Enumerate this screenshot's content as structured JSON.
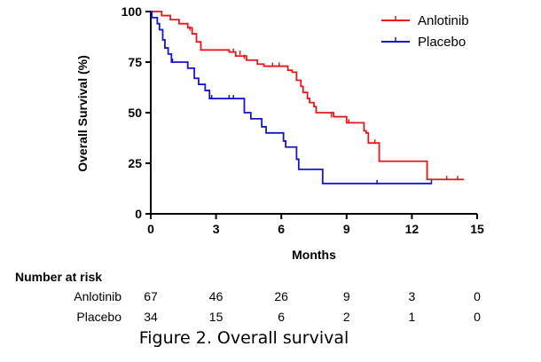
{
  "chart_data": {
    "type": "line",
    "title": "",
    "xlabel": "Months",
    "ylabel": "Overall Survival (%)",
    "xlim": [
      0,
      15
    ],
    "ylim": [
      0,
      100
    ],
    "xticks": [
      0,
      3,
      6,
      9,
      12,
      15
    ],
    "yticks": [
      0,
      25,
      50,
      75,
      100
    ],
    "grid": false,
    "legend_position": "top-right",
    "series": [
      {
        "name": "Anlotinib",
        "color": "#e8161b",
        "step": true,
        "points": [
          [
            0,
            100
          ],
          [
            0.3,
            100
          ],
          [
            0.5,
            98
          ],
          [
            0.9,
            96
          ],
          [
            1.3,
            94
          ],
          [
            1.7,
            92
          ],
          [
            1.9,
            89
          ],
          [
            2.1,
            85
          ],
          [
            2.3,
            81
          ],
          [
            3.1,
            81
          ],
          [
            3.6,
            80
          ],
          [
            3.9,
            78
          ],
          [
            4.4,
            76
          ],
          [
            4.9,
            74
          ],
          [
            5.2,
            73
          ],
          [
            6.1,
            73
          ],
          [
            6.3,
            71
          ],
          [
            6.5,
            70
          ],
          [
            6.7,
            66
          ],
          [
            6.9,
            63
          ],
          [
            7.0,
            60
          ],
          [
            7.2,
            57
          ],
          [
            7.3,
            55
          ],
          [
            7.5,
            53
          ],
          [
            7.6,
            50
          ],
          [
            8.2,
            50
          ],
          [
            8.4,
            48
          ],
          [
            9.0,
            45
          ],
          [
            9.6,
            45
          ],
          [
            9.8,
            41
          ],
          [
            9.9,
            40
          ],
          [
            10.0,
            35
          ],
          [
            10.4,
            35
          ],
          [
            10.5,
            26
          ],
          [
            12.7,
            26
          ],
          [
            12.7,
            17
          ],
          [
            14.4,
            17
          ]
        ],
        "censor": [
          [
            1.8,
            91
          ],
          [
            3.8,
            80
          ],
          [
            4.1,
            79
          ],
          [
            4.3,
            77
          ],
          [
            5.6,
            73
          ],
          [
            5.9,
            73
          ],
          [
            8.3,
            48
          ],
          [
            9.1,
            45
          ],
          [
            10.3,
            35
          ],
          [
            13.6,
            17
          ],
          [
            14.1,
            17
          ]
        ]
      },
      {
        "name": "Placebo",
        "color": "#1515cf",
        "step": true,
        "points": [
          [
            0,
            100
          ],
          [
            0.05,
            97
          ],
          [
            0.3,
            94
          ],
          [
            0.4,
            91
          ],
          [
            0.55,
            86
          ],
          [
            0.65,
            82
          ],
          [
            0.8,
            79
          ],
          [
            0.95,
            75
          ],
          [
            1.5,
            75
          ],
          [
            1.7,
            72
          ],
          [
            2.0,
            67
          ],
          [
            2.2,
            64
          ],
          [
            2.5,
            61
          ],
          [
            2.7,
            57
          ],
          [
            4.1,
            57
          ],
          [
            4.3,
            50
          ],
          [
            4.6,
            47
          ],
          [
            5.1,
            43
          ],
          [
            5.3,
            40
          ],
          [
            6.0,
            40
          ],
          [
            6.1,
            36
          ],
          [
            6.2,
            33
          ],
          [
            6.7,
            27
          ],
          [
            6.8,
            22
          ],
          [
            7.9,
            22
          ],
          [
            7.9,
            15
          ],
          [
            12.9,
            15
          ]
        ],
        "censor": [
          [
            1.0,
            75
          ],
          [
            2.8,
            57
          ],
          [
            3.6,
            57
          ],
          [
            3.8,
            57
          ],
          [
            10.4,
            15
          ],
          [
            12.9,
            15
          ]
        ]
      }
    ],
    "risk_table": {
      "title": "Number at risk",
      "times": [
        0,
        3,
        6,
        9,
        12,
        15
      ],
      "rows": [
        {
          "label": "Anlotinib",
          "counts": [
            "67",
            "46",
            "26",
            "9",
            "3",
            "0"
          ]
        },
        {
          "label": "Placebo",
          "counts": [
            "34",
            "15",
            "6",
            "2",
            "1",
            "0"
          ]
        }
      ]
    },
    "caption": "Figure 2. Overall survival"
  }
}
